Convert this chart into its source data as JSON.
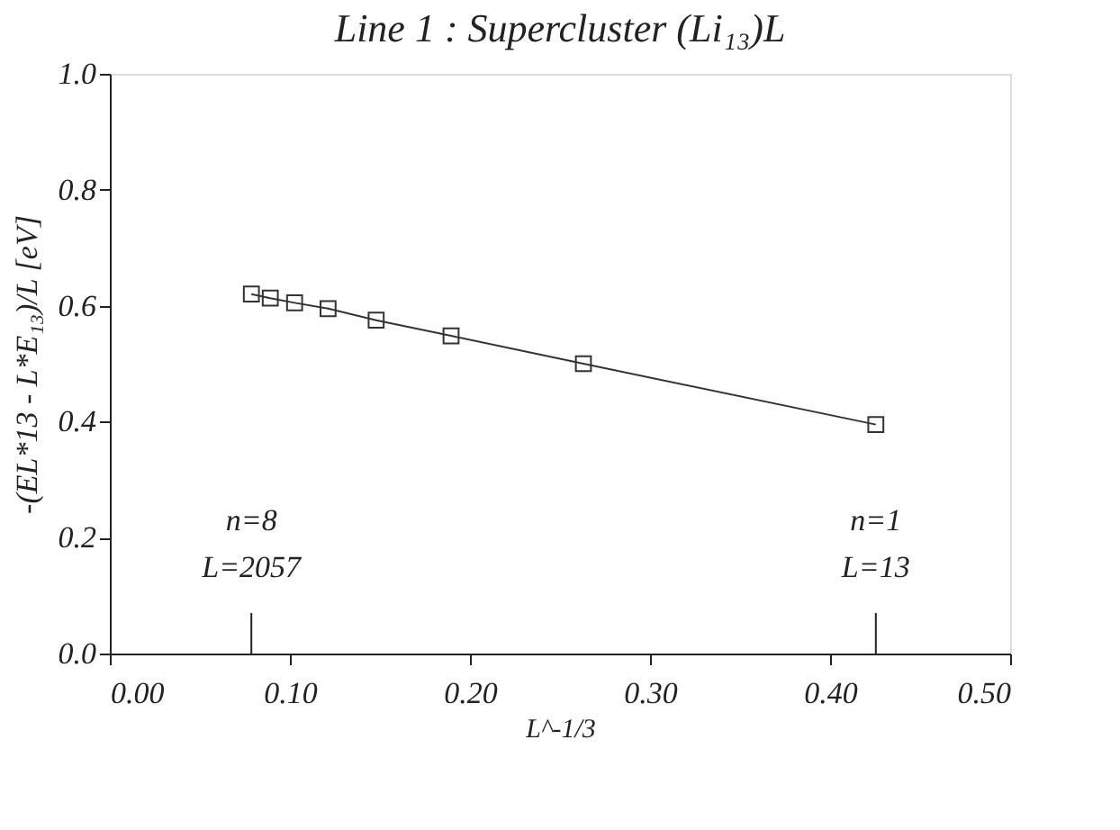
{
  "chart_data": {
    "type": "line",
    "title": "Line 1 : Supercluster (Li₁₃)L",
    "xlabel": "L^-1/3",
    "ylabel": "-(EL*13 - L*E₁₃)/L [eV]",
    "x": [
      0.0786,
      0.0891,
      0.1026,
      0.1212,
      0.1479,
      0.1895,
      0.263,
      0.4254
    ],
    "series": [
      {
        "color": "#333333",
        "values": [
          0.62,
          0.613,
          0.605,
          0.595,
          0.575,
          0.548,
          0.5,
          0.395
        ]
      }
    ],
    "marker": "square",
    "line_style": "solid",
    "xlim": [
      0.0,
      0.5
    ],
    "ylim": [
      0.0,
      1.0
    ],
    "xticks": [
      {
        "value": 0,
        "label": "0.00"
      },
      {
        "value": 0.1,
        "label": "0.10"
      },
      {
        "value": 0.2,
        "label": "0.20"
      },
      {
        "value": 0.3,
        "label": "0.30"
      },
      {
        "value": 0.4,
        "label": "0.40"
      },
      {
        "value": 0.5,
        "label": "0.50"
      }
    ],
    "yticks": [
      {
        "value": 0,
        "label": "0.0"
      },
      {
        "value": 0.2,
        "label": "0.2"
      },
      {
        "value": 0.4,
        "label": "0.4"
      },
      {
        "value": 0.6,
        "label": "0.6"
      },
      {
        "value": 0.8,
        "label": "0.8"
      },
      {
        "value": 1.0,
        "label": "1.0"
      }
    ],
    "annotations": [
      "n=8",
      "L=2057",
      "n=1",
      "L=13"
    ],
    "grid": false
  }
}
